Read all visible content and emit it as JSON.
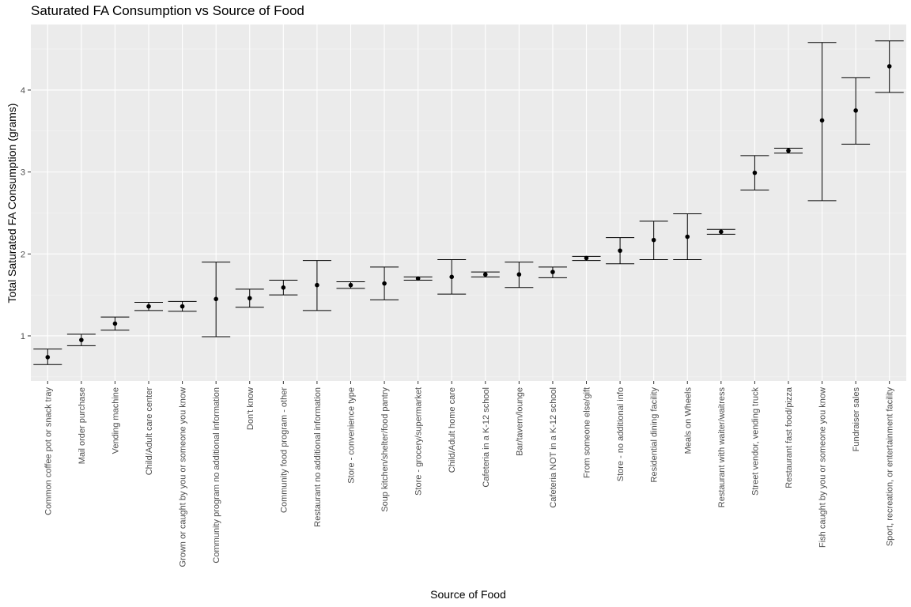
{
  "chart_data": {
    "type": "errorbar",
    "title": "Saturated FA Consumption vs Source of Food",
    "xlabel": "Source of Food",
    "ylabel": "Total Saturated FA Consumption (grams)",
    "ylim": [
      0.45,
      4.8
    ],
    "yticks": [
      1,
      2,
      3,
      4
    ],
    "grid": true,
    "categories": [
      "Common coffee pot or snack tray",
      "Mail order purchase",
      "Vending machine",
      "Child/Adult care center",
      "Grown or caught by you or someone you know",
      "Community program no additional information",
      "Don't know",
      "Community food program - other",
      "Restaurant no additional information",
      "Store - convenience type",
      "Soup kitchen/shelter/food pantry",
      "Store - grocery/supermarket",
      "Child/Adult home care",
      "Cafeteria in a K-12 school",
      "Bar/tavern/lounge",
      "Cafeteria NOT in a K-12 school",
      "From someone else/gift",
      "Store - no additional info",
      "Residential dining facility",
      "Meals on Wheels",
      "Restaurant with waiter/waitress",
      "Street vendor, vending truck",
      "Restaurant fast food/pizza",
      "Fish caught by you or someone you know",
      "Fundraiser sales",
      "Sport, recreation, or entertainment facility"
    ],
    "mean": [
      0.74,
      0.95,
      1.15,
      1.36,
      1.36,
      1.45,
      1.46,
      1.59,
      1.62,
      1.62,
      1.64,
      1.7,
      1.72,
      1.75,
      1.75,
      1.78,
      1.95,
      2.04,
      2.17,
      2.21,
      2.27,
      2.99,
      3.26,
      3.63,
      3.75,
      4.29
    ],
    "lower": [
      0.65,
      0.88,
      1.07,
      1.31,
      1.3,
      0.99,
      1.35,
      1.5,
      1.31,
      1.58,
      1.44,
      1.68,
      1.51,
      1.72,
      1.59,
      1.71,
      1.92,
      1.88,
      1.93,
      1.93,
      2.24,
      2.78,
      3.23,
      2.65,
      3.34,
      3.97
    ],
    "upper": [
      0.84,
      1.02,
      1.23,
      1.41,
      1.42,
      1.9,
      1.57,
      1.68,
      1.92,
      1.66,
      1.84,
      1.72,
      1.93,
      1.78,
      1.9,
      1.84,
      1.97,
      2.2,
      2.4,
      2.49,
      2.3,
      3.2,
      3.29,
      4.58,
      4.15,
      4.6
    ]
  }
}
